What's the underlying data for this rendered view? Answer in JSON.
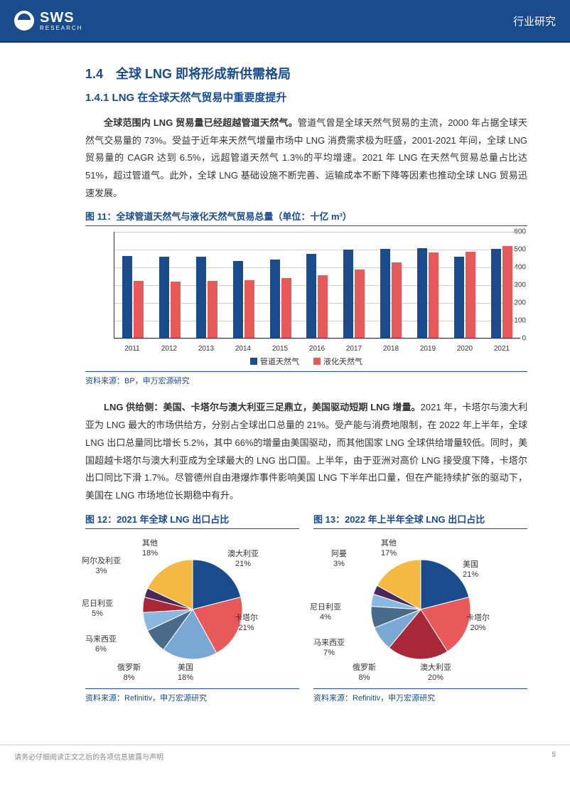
{
  "header": {
    "brand": "SWS",
    "brand_sub": "RESEARCH",
    "right": "行业研究"
  },
  "h1": "1.4　全球 LNG 即将形成新供需格局",
  "h2": "1.4.1 LNG 在全球天然气贸易中重要度提升",
  "para1_bold": "全球范围内 LNG 贸易量已经超越管道天然气。",
  "para1_rest": "管道气曾是全球天然气贸易的主流，2000 年占据全球天然气交易量的 73%。受益于近年来天然气增量市场中 LNG 消费需求极为旺盛，2001-2021 年间，全球 LNG 贸易量的 CAGR 达到 6.5%，远超管道天然气 1.3%的平均增速。2021 年 LNG 在天然气贸易总量占比达 51%，超过管道气。此外，全球 LNG 基础设施不断完善、运输成本不断下降等因素也推动全球 LNG 贸易迅速发展。",
  "fig11": {
    "title": "图 11：全球管道天然气与液化天然气贸易总量（单位：十亿 m³）",
    "type": "bar",
    "years": [
      "2011",
      "2012",
      "2013",
      "2014",
      "2015",
      "2016",
      "2017",
      "2018",
      "2019",
      "2020",
      "2021"
    ],
    "series": [
      {
        "name": "管道天然气",
        "color": "#1a4b8c",
        "values": [
          465,
          460,
          460,
          435,
          445,
          475,
          500,
          505,
          510,
          460,
          505
        ]
      },
      {
        "name": "液化天然气",
        "color": "#e85a5a",
        "values": [
          325,
          320,
          325,
          330,
          340,
          355,
          390,
          430,
          485,
          490,
          520
        ]
      }
    ],
    "ylim": [
      0,
      600
    ],
    "ytick_step": 100,
    "grid_color": "#d0d0d0",
    "axis_fontsize": 10
  },
  "source11": "资料来源：BP，申万宏源研究",
  "para2_bold": "LNG 供给侧：美国、卡塔尔与澳大利亚三足鼎立，美国驱动短期 LNG 增量。",
  "para2_rest": "2021 年，卡塔尔与澳大利亚为 LNG 最大的市场供给方，分别占全球出口总量的 21%。受产能与消费地限制，在 2022 年上半年，全球 LNG 出口总量同比增长 5.2%，其中 66%的增量由美国驱动，而其他国家 LNG 全球供给增量较低。同时，美国超越卡塔尔与澳大利亚成为全球最大的 LNG 出口国。上半年，由于亚洲对高价 LNG 接受度下降，卡塔尔出口同比下滑 1.7%。尽管德州自由港爆炸事件影响美国 LNG 下半年出口量，但在产能持续扩张的驱动下，美国在 LNG 市场地位长期稳中有升。",
  "fig12": {
    "title": "图 12：2021 年全球 LNG 出口占比",
    "type": "pie",
    "slices": [
      {
        "label": "澳大利亚",
        "pct": 21,
        "color": "#1a4b8c"
      },
      {
        "label": "卡塔尔",
        "pct": 21,
        "color": "#e85a5a"
      },
      {
        "label": "美国",
        "pct": 18,
        "color": "#7aa8d4"
      },
      {
        "label": "俄罗斯",
        "pct": 8,
        "color": "#4a6a8a"
      },
      {
        "label": "马来西亚",
        "pct": 6,
        "color": "#8bb8e0"
      },
      {
        "label": "尼日利亚",
        "pct": 5,
        "color": "#a8283a"
      },
      {
        "label": "阿尔及利亚",
        "pct": 3,
        "color": "#4a2a5a"
      },
      {
        "label": "其他",
        "pct": 18,
        "color": "#f5b942"
      }
    ]
  },
  "fig13": {
    "title": "图 13：2022 年上半年全球 LNG 出口占比",
    "type": "pie",
    "slices": [
      {
        "label": "美国",
        "pct": 21,
        "color": "#1a4b8c"
      },
      {
        "label": "卡塔尔",
        "pct": 20,
        "color": "#e85a5a"
      },
      {
        "label": "澳大利亚",
        "pct": 20,
        "color": "#a8283a"
      },
      {
        "label": "俄罗斯",
        "pct": 8,
        "color": "#7aa8d4"
      },
      {
        "label": "马来西亚",
        "pct": 7,
        "color": "#4a6a8a"
      },
      {
        "label": "尼日利亚",
        "pct": 4,
        "color": "#8bb8e0"
      },
      {
        "label": "阿曼",
        "pct": 3,
        "color": "#4a2a5a"
      },
      {
        "label": "其他",
        "pct": 17,
        "color": "#f5b942"
      }
    ]
  },
  "source12": "资料来源：Refinitiv，申万宏源研究",
  "source13": "资料来源：Refinitiv，申万宏源研究",
  "footer": {
    "left": "请务必仔细阅读正文之后的各项信息披露与声明",
    "page": "5"
  }
}
